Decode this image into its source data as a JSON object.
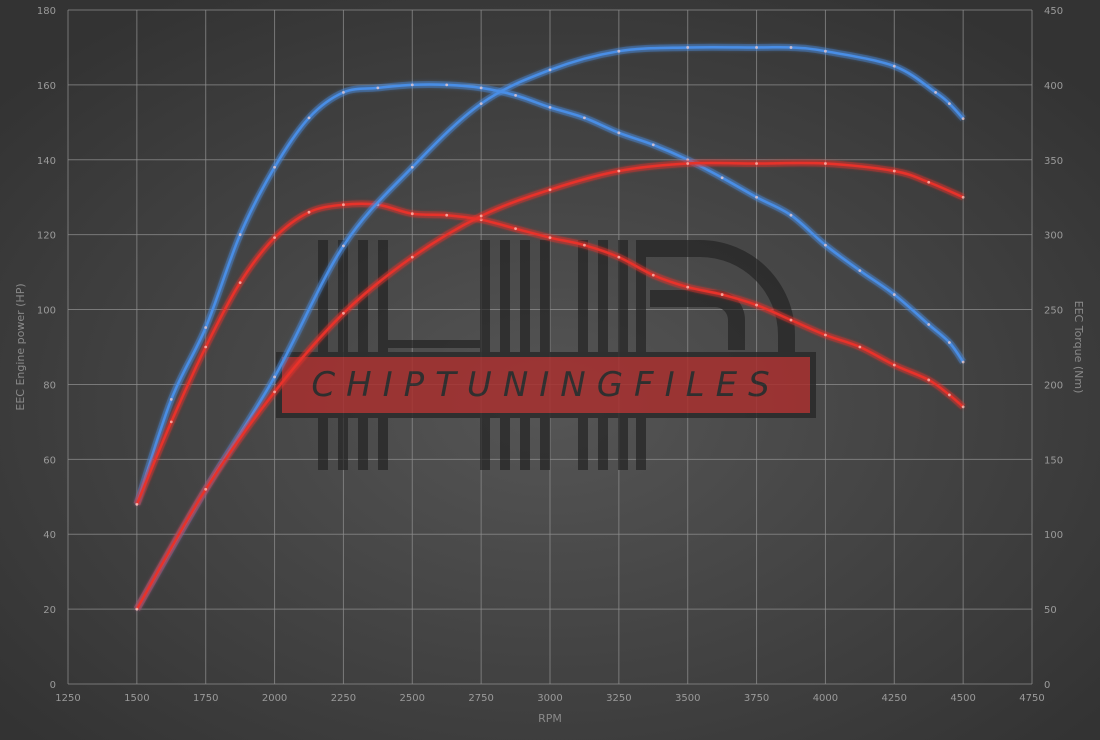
{
  "chart_data": {
    "type": "line",
    "xlabel": "RPM",
    "ylabel_left": "EEC Engine power (HP)",
    "ylabel_right": "EEC Torque (Nm)",
    "xlim": [
      1250,
      4750
    ],
    "ylim_left": [
      0,
      180
    ],
    "ylim_right": [
      0,
      450
    ],
    "x_ticks": [
      1250,
      1500,
      1750,
      2000,
      2250,
      2500,
      2750,
      3000,
      3250,
      3500,
      3750,
      4000,
      4250,
      4500,
      4750
    ],
    "y_left_ticks": [
      0,
      20,
      40,
      60,
      80,
      100,
      120,
      140,
      160,
      180
    ],
    "y_right_ticks": [
      0,
      50,
      100,
      150,
      200,
      250,
      300,
      350,
      400,
      450
    ],
    "grid": true,
    "watermark": "CHIPTUNINGFILES",
    "series": [
      {
        "axis": "right",
        "color": "#4a8ee6",
        "x": [
          1500,
          1625,
          1750,
          1875,
          2000,
          2125,
          2250,
          2375,
          2500,
          2625,
          2750,
          2875,
          3000,
          3125,
          3250,
          3375,
          3500,
          3625,
          3750,
          3875,
          4000,
          4125,
          4250,
          4375,
          4450,
          4500
        ],
        "values": [
          120,
          190,
          238,
          300,
          345,
          378,
          395,
          398,
          400,
          400,
          398,
          393,
          385,
          378,
          368,
          360,
          350,
          338,
          325,
          313,
          293,
          276,
          260,
          240,
          228,
          215
        ]
      },
      {
        "axis": "right",
        "color": "#e8302a",
        "x": [
          1500,
          1625,
          1750,
          1875,
          2000,
          2125,
          2250,
          2375,
          2500,
          2625,
          2750,
          2875,
          3000,
          3125,
          3250,
          3375,
          3500,
          3625,
          3750,
          3875,
          4000,
          4125,
          4250,
          4375,
          4450,
          4500
        ],
        "values": [
          120,
          175,
          225,
          268,
          298,
          315,
          320,
          320,
          314,
          313,
          310,
          304,
          298,
          293,
          285,
          273,
          265,
          260,
          253,
          243,
          233,
          225,
          213,
          203,
          193,
          185
        ]
      },
      {
        "axis": "left",
        "color": "#4a8ee6",
        "x": [
          1500,
          1750,
          2000,
          2250,
          2500,
          2750,
          3000,
          3250,
          3500,
          3750,
          3875,
          4000,
          4250,
          4400,
          4450,
          4500
        ],
        "values": [
          20,
          52,
          82,
          117,
          138,
          155,
          164,
          169,
          170,
          170,
          170,
          169,
          165,
          158,
          155,
          151
        ]
      },
      {
        "axis": "left",
        "color": "#e8302a",
        "x": [
          1500,
          1750,
          2000,
          2250,
          2500,
          2750,
          3000,
          3250,
          3500,
          3750,
          4000,
          4250,
          4375,
          4500
        ],
        "values": [
          20,
          52,
          78,
          99,
          114,
          125,
          132,
          137,
          139,
          139,
          139,
          137,
          134,
          130
        ]
      }
    ]
  }
}
